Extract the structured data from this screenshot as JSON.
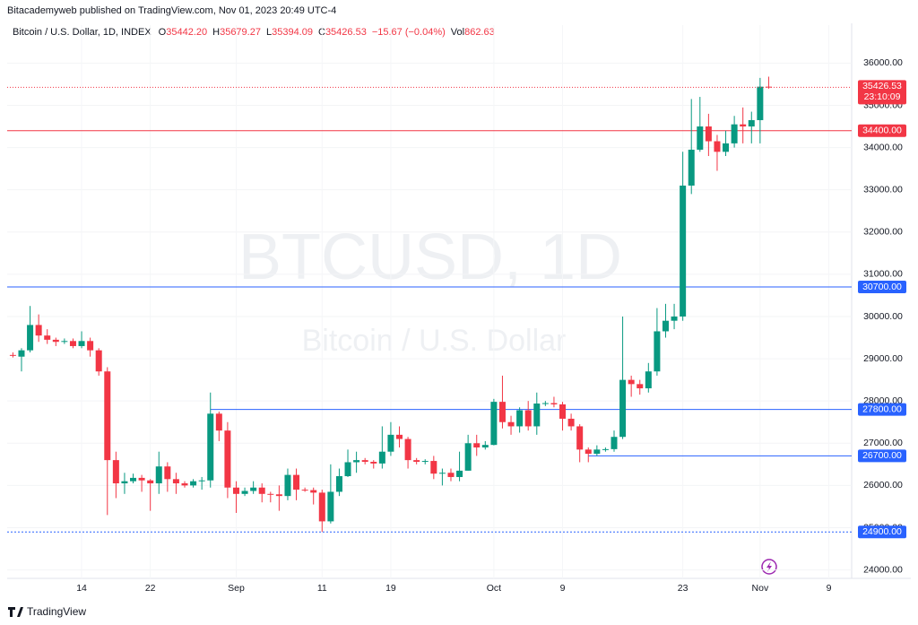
{
  "header": {
    "published": "Bitacademyweb published on TradingView.com, Nov 01, 2023 20:49 UTC-4",
    "symbol": "Bitcoin / U.S. Dollar, 1D, INDEX",
    "ohlc": [
      {
        "key": "O",
        "text": "35442.20"
      },
      {
        "key": "H",
        "text": "35679.27"
      },
      {
        "key": "L",
        "text": "35394.09"
      },
      {
        "key": "C",
        "text": "35426.53"
      }
    ],
    "change": "−15.67 (−0.04%)",
    "volume_key": "Vol",
    "volume": "862.63",
    "watermark": "BTCUSD, 1D",
    "watermark_sub": "Bitcoin / U.S. Dollar",
    "footer": "TradingView"
  },
  "chart_data": {
    "type": "candlestick",
    "up_color": "#089981",
    "down_color": "#f23645",
    "x": [
      "2023-08-06",
      "2023-08-07",
      "2023-08-08",
      "2023-08-09",
      "2023-08-10",
      "2023-08-11",
      "2023-08-12",
      "2023-08-13",
      "2023-08-14",
      "2023-08-15",
      "2023-08-16",
      "2023-08-17",
      "2023-08-18",
      "2023-08-19",
      "2023-08-20",
      "2023-08-21",
      "2023-08-22",
      "2023-08-23",
      "2023-08-24",
      "2023-08-25",
      "2023-08-26",
      "2023-08-27",
      "2023-08-28",
      "2023-08-29",
      "2023-08-30",
      "2023-08-31",
      "2023-09-01",
      "2023-09-02",
      "2023-09-03",
      "2023-09-04",
      "2023-09-05",
      "2023-09-06",
      "2023-09-07",
      "2023-09-08",
      "2023-09-09",
      "2023-09-10",
      "2023-09-11",
      "2023-09-12",
      "2023-09-13",
      "2023-09-14",
      "2023-09-15",
      "2023-09-16",
      "2023-09-17",
      "2023-09-18",
      "2023-09-19",
      "2023-09-20",
      "2023-09-21",
      "2023-09-22",
      "2023-09-23",
      "2023-09-24",
      "2023-09-25",
      "2023-09-26",
      "2023-09-27",
      "2023-09-28",
      "2023-09-29",
      "2023-09-30",
      "2023-10-01",
      "2023-10-02",
      "2023-10-03",
      "2023-10-04",
      "2023-10-05",
      "2023-10-06",
      "2023-10-07",
      "2023-10-08",
      "2023-10-09",
      "2023-10-10",
      "2023-10-11",
      "2023-10-12",
      "2023-10-13",
      "2023-10-14",
      "2023-10-15",
      "2023-10-16",
      "2023-10-17",
      "2023-10-18",
      "2023-10-19",
      "2023-10-20",
      "2023-10-21",
      "2023-10-22",
      "2023-10-23",
      "2023-10-24",
      "2023-10-25",
      "2023-10-26",
      "2023-10-27",
      "2023-10-28",
      "2023-10-29",
      "2023-10-30",
      "2023-10-31",
      "2023-11-01",
      "2023-11-02"
    ],
    "open": [
      29090,
      29050,
      29200,
      29800,
      29550,
      29450,
      29400,
      29420,
      29300,
      29420,
      29200,
      28700,
      26600,
      26050,
      26100,
      26180,
      26120,
      26050,
      26450,
      26150,
      26050,
      26000,
      26100,
      26120,
      27700,
      27300,
      25950,
      25800,
      25870,
      25950,
      25800,
      25790,
      25750,
      26250,
      25900,
      25890,
      25830,
      25150,
      25850,
      26220,
      26550,
      26600,
      26560,
      26520,
      26800,
      27200,
      27100,
      26600,
      26560,
      26580,
      26280,
      26300,
      26200,
      26350,
      27000,
      26900,
      26960,
      27980,
      27500,
      27400,
      27780,
      27400,
      27940,
      27950,
      27920,
      27580,
      27400,
      26850,
      26750,
      26850,
      26860,
      27150,
      28500,
      28400,
      28300,
      28700,
      29650,
      29900,
      30000,
      33100,
      33950,
      34500,
      34150,
      33900,
      34100,
      34550,
      34500,
      34650,
      35442.2
    ],
    "high": [
      29150,
      29250,
      30250,
      30050,
      29700,
      29500,
      29480,
      29480,
      29650,
      29500,
      29250,
      28800,
      26800,
      26300,
      26280,
      26250,
      26150,
      26800,
      26550,
      26300,
      26100,
      26150,
      26200,
      28200,
      27750,
      27500,
      26100,
      25950,
      26100,
      26050,
      25850,
      26000,
      26400,
      26400,
      25950,
      25950,
      25900,
      26500,
      26400,
      26850,
      26800,
      26650,
      26600,
      27400,
      27500,
      27400,
      27150,
      26650,
      26620,
      26700,
      26400,
      26400,
      26800,
      27200,
      27200,
      27050,
      28050,
      28600,
      27650,
      27850,
      28000,
      28200,
      28000,
      28100,
      27980,
      27700,
      27450,
      26900,
      26950,
      26900,
      27300,
      30000,
      28600,
      28500,
      28900,
      30200,
      30300,
      30300,
      33900,
      35150,
      35200,
      34800,
      34300,
      34400,
      34750,
      34950,
      34850,
      35650,
      35679.27
    ],
    "low": [
      29030,
      28700,
      29150,
      29400,
      29350,
      29300,
      29350,
      29250,
      29250,
      29050,
      28600,
      25300,
      25700,
      25800,
      26050,
      25850,
      25400,
      25800,
      25850,
      25800,
      25950,
      25950,
      25900,
      25950,
      27050,
      25700,
      25350,
      25750,
      25800,
      25600,
      25600,
      25400,
      25650,
      25650,
      25850,
      25550,
      24900,
      25100,
      25750,
      26200,
      26300,
      26500,
      26400,
      26400,
      26700,
      26900,
      26400,
      26500,
      26500,
      26150,
      26000,
      26100,
      26100,
      26350,
      26700,
      26850,
      26950,
      27350,
      27200,
      27250,
      27300,
      27200,
      27880,
      27850,
      27300,
      27300,
      26550,
      26550,
      26700,
      26800,
      26800,
      27100,
      28100,
      28150,
      28200,
      28600,
      29500,
      29700,
      29900,
      32900,
      33900,
      33800,
      33450,
      33800,
      34000,
      34100,
      34100,
      34100,
      35394.09
    ],
    "close": [
      29070,
      29200,
      29800,
      29550,
      29450,
      29400,
      29420,
      29300,
      29420,
      29200,
      28700,
      26600,
      26050,
      26100,
      26180,
      26120,
      26050,
      26450,
      26150,
      26050,
      26000,
      26100,
      26120,
      27700,
      27300,
      25950,
      25800,
      25870,
      25950,
      25800,
      25790,
      25750,
      26250,
      25900,
      25890,
      25830,
      25150,
      25850,
      26220,
      26550,
      26600,
      26560,
      26520,
      26800,
      27200,
      27100,
      26600,
      26560,
      26580,
      26280,
      26300,
      26200,
      26350,
      27000,
      26900,
      26960,
      27980,
      27500,
      27400,
      27780,
      27400,
      27940,
      27950,
      27920,
      27580,
      27400,
      26850,
      26750,
      26850,
      26860,
      27150,
      28500,
      28400,
      28300,
      28700,
      29650,
      29900,
      30000,
      33100,
      33950,
      34500,
      34150,
      33900,
      34100,
      34550,
      34500,
      34650,
      35442.2,
      35426.53
    ],
    "countdown": "23:10:09",
    "ylim": [
      23800,
      36900
    ],
    "yticks": [
      {
        "value": 24000,
        "label": "24000.00"
      },
      {
        "value": 25000,
        "label": "25000.00"
      },
      {
        "value": 26000,
        "label": "26000.00"
      },
      {
        "value": 27000,
        "label": "27000.00"
      },
      {
        "value": 28000,
        "label": "28000.00"
      },
      {
        "value": 29000,
        "label": "29000.00"
      },
      {
        "value": 30000,
        "label": "30000.00"
      },
      {
        "value": 31000,
        "label": "31000.00"
      },
      {
        "value": 32000,
        "label": "32000.00"
      },
      {
        "value": 33000,
        "label": "33000.00"
      },
      {
        "value": 34000,
        "label": "34000.00"
      },
      {
        "value": 35000,
        "label": "35000.00"
      },
      {
        "value": 36000,
        "label": "36000.00"
      }
    ],
    "xticks": [
      {
        "value": "2023-08-14",
        "label": "14"
      },
      {
        "value": "2023-08-22",
        "label": "22"
      },
      {
        "value": "2023-09-01",
        "label": "Sep"
      },
      {
        "value": "2023-09-11",
        "label": "11"
      },
      {
        "value": "2023-09-19",
        "label": "19"
      },
      {
        "value": "2023-10-01",
        "label": "Oct"
      },
      {
        "value": "2023-10-09",
        "label": "9"
      },
      {
        "value": "2023-10-23",
        "label": "23"
      },
      {
        "value": "2023-11-01",
        "label": "Nov"
      },
      {
        "value": "2023-11-09",
        "label": "9"
      }
    ],
    "levels": [
      {
        "value": 34400,
        "label": "34400.00",
        "color": "#f23645",
        "style": "solid"
      },
      {
        "value": 30700,
        "label": "30700.00",
        "color": "#2962ff",
        "style": "solid"
      },
      {
        "value": 27800,
        "label": "27800.00",
        "color": "#2962ff",
        "style": "solid",
        "start": "2023-08-29"
      },
      {
        "value": 26700,
        "label": "26700.00",
        "color": "#2962ff",
        "style": "solid",
        "start": "2023-10-12"
      },
      {
        "value": 24900,
        "label": "24900.00",
        "color": "#2962ff",
        "style": "dotted"
      }
    ]
  }
}
